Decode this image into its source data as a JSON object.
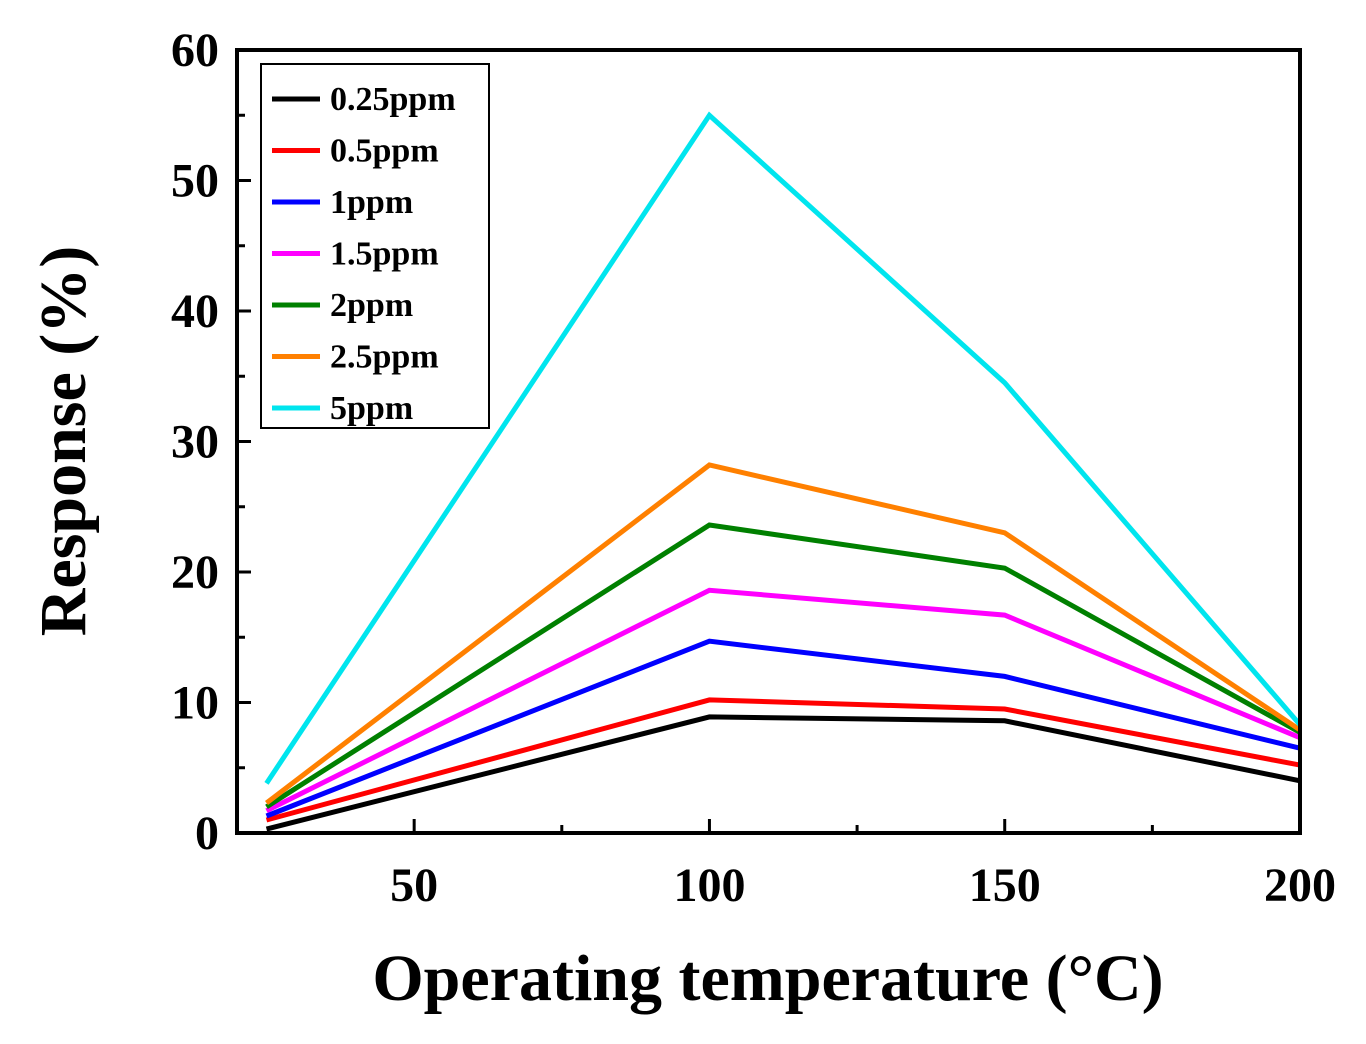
{
  "chart_data": {
    "type": "line",
    "title": "",
    "xlabel": "Operating temperature (°C)",
    "ylabel": "Response (%)",
    "xlim": [
      20,
      200
    ],
    "ylim": [
      0,
      60
    ],
    "x": [
      25,
      100,
      150,
      200
    ],
    "x_ticks": [
      "50",
      "100",
      "150",
      "200"
    ],
    "y_ticks": [
      "0",
      "10",
      "20",
      "30",
      "40",
      "50",
      "60"
    ],
    "x_tick_values": [
      50,
      100,
      150,
      200
    ],
    "y_tick_values": [
      0,
      10,
      20,
      30,
      40,
      50,
      60
    ],
    "grid": false,
    "legend_position": "top-left",
    "series": [
      {
        "name": "0.25ppm",
        "color": "#000000",
        "values": [
          0.3,
          8.9,
          8.6,
          4.0
        ]
      },
      {
        "name": "0.5ppm",
        "color": "#ff0000",
        "values": [
          1.0,
          10.2,
          9.5,
          5.2
        ]
      },
      {
        "name": "1ppm",
        "color": "#0000ff",
        "values": [
          1.3,
          14.7,
          12.0,
          6.5
        ]
      },
      {
        "name": "1.5ppm",
        "color": "#ff00ff",
        "values": [
          1.7,
          18.6,
          16.7,
          7.3
        ]
      },
      {
        "name": "2ppm",
        "color": "#008000",
        "values": [
          2.0,
          23.6,
          20.3,
          7.7
        ]
      },
      {
        "name": "2.5ppm",
        "color": "#ff8000",
        "values": [
          2.3,
          28.2,
          23.0,
          7.9
        ]
      },
      {
        "name": "5ppm",
        "color": "#00e5ee",
        "values": [
          3.8,
          55.0,
          34.5,
          8.3
        ]
      }
    ]
  }
}
